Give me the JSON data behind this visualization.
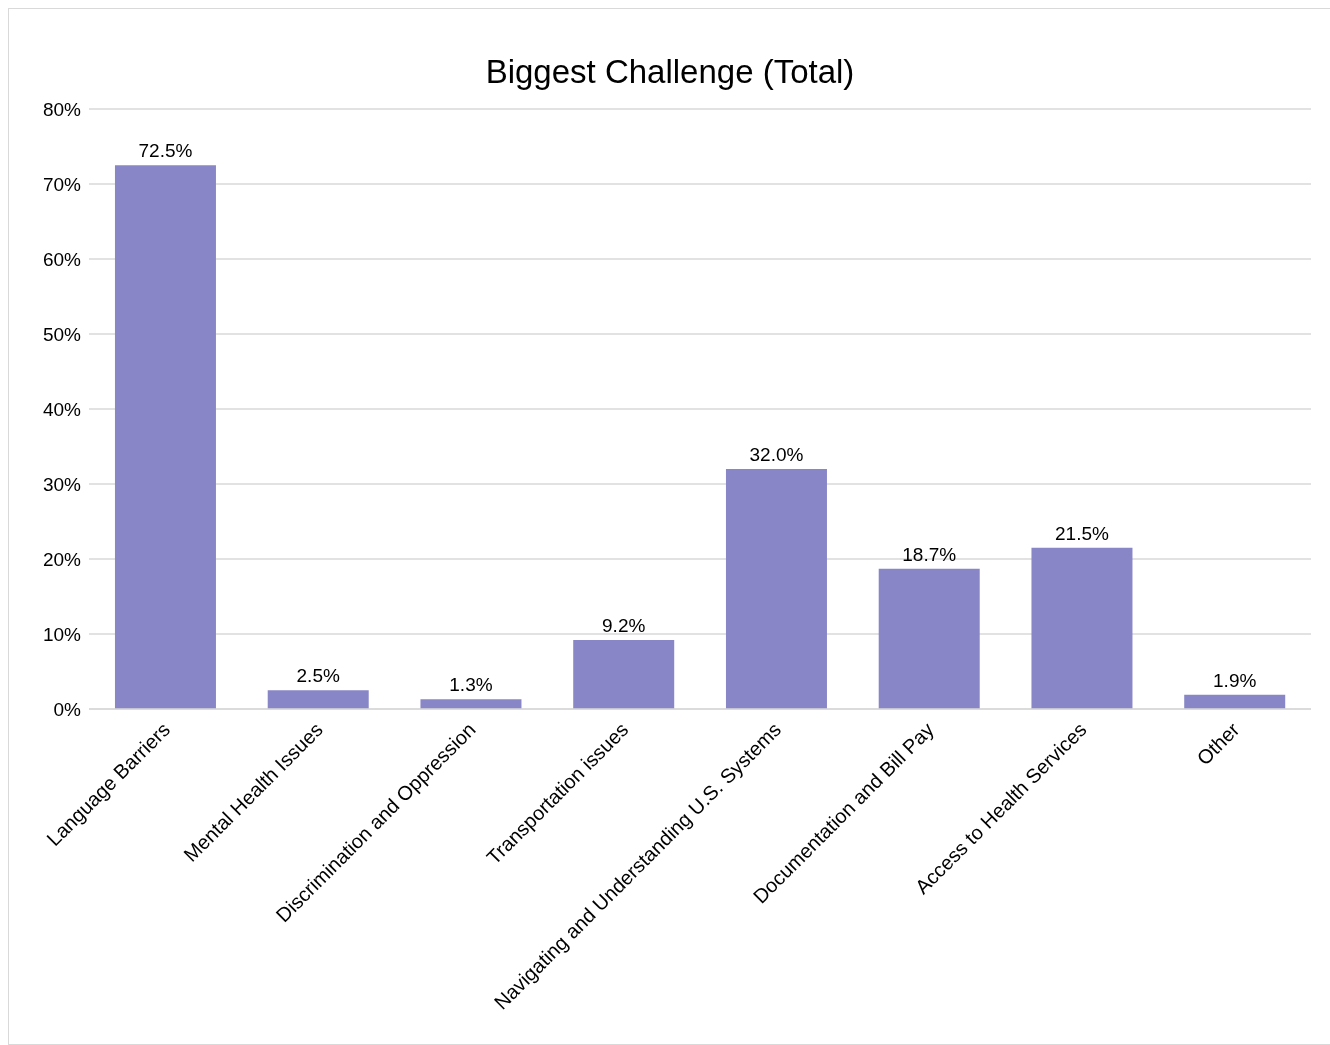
{
  "chart_data": {
    "type": "bar",
    "title": "Biggest Challenge (Total)",
    "categories": [
      "Language Barriers",
      "Mental Health Issues",
      "Discrimination and Oppression",
      "Transportation issues",
      "Navigating and Understanding U.S. Systems",
      "Documentation and Bill Pay",
      "Access to Health Services",
      "Other"
    ],
    "values": [
      72.5,
      2.5,
      1.3,
      9.2,
      32.0,
      18.7,
      21.5,
      1.9
    ],
    "value_labels": [
      "72.5%",
      "2.5%",
      "1.3%",
      "9.2%",
      "32.0%",
      "18.7%",
      "21.5%",
      "1.9%"
    ],
    "color": "#8886c6",
    "ylim": [
      0,
      80
    ],
    "yticks": [
      {
        "value": 0,
        "label": "0%"
      },
      {
        "value": 10,
        "label": "10%"
      },
      {
        "value": 20,
        "label": "20%"
      },
      {
        "value": 30,
        "label": "30%"
      },
      {
        "value": 40,
        "label": "40%"
      },
      {
        "value": 50,
        "label": "50%"
      },
      {
        "value": 60,
        "label": "60%"
      },
      {
        "value": 70,
        "label": "70%"
      },
      {
        "value": 80,
        "label": "80%"
      }
    ],
    "grid": "y",
    "legend": false
  }
}
